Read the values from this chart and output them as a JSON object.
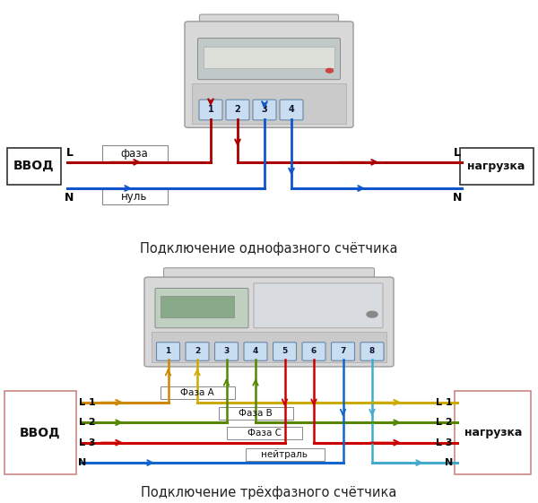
{
  "bg_color": "#ffffff",
  "title1": "Подключение однофазного счётчика",
  "title2": "Подключение трёхфазного счётчика",
  "phase1": {
    "ввод_label": "ВВОД",
    "нагрузка_label": "нагрузка",
    "L_left": "L",
    "N_left": "N",
    "L_right": "L",
    "N_right": "N",
    "фаза_label": "фаза",
    "нуль_label": "нуль",
    "terminals": [
      "1",
      "2",
      "3",
      "4"
    ],
    "red_color": "#aa0000",
    "blue_color": "#1155cc",
    "dark_red": "#7a0000"
  },
  "phase3": {
    "введ_label": "ВВОД",
    "нагрузка_label": "нагрузка",
    "L1_left": "L 1",
    "L2_left": "L 2",
    "L3_left": "L 3",
    "N_left": "N",
    "L1_right": "L 1",
    "L2_right": "L 2",
    "L3_right": "L 3",
    "N_right": "N",
    "фазаA_label": "Фаза А",
    "фазаB_label": "Фаза В",
    "фазаC_label": "Фаза С",
    "нейтраль_label": "нейтраль",
    "terminals": [
      "1",
      "2",
      "3",
      "4",
      "5",
      "6",
      "7",
      "8"
    ],
    "yellow_color": "#cc8800",
    "yellow2_color": "#ccaa00",
    "green_color": "#558800",
    "red_color": "#cc0000",
    "blue_color": "#1166cc",
    "lightblue_color": "#44aacc"
  }
}
